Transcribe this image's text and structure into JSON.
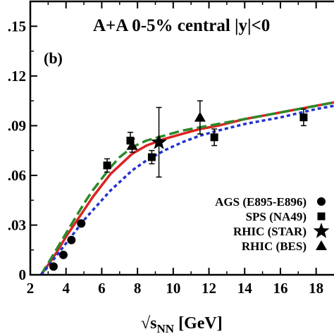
{
  "chart_data": {
    "type": "scatter",
    "title": "A+A 0-5% central  |y|<0",
    "panel_label": "(b)",
    "xlabel_prefix": "√s",
    "xlabel_sub": "NN",
    "xlabel_suffix": " [GeV]",
    "xlim": [
      2,
      19
    ],
    "ylim": [
      0,
      0.165
    ],
    "x_ticks": [
      2,
      4,
      6,
      8,
      10,
      12,
      14,
      16,
      18
    ],
    "x_tick_labels": [
      "2",
      "4",
      "6",
      "8",
      "10",
      "12",
      "14",
      "16",
      "18"
    ],
    "y_ticks": [
      0,
      0.03,
      0.06,
      0.09,
      0.12,
      0.15
    ],
    "y_tick_labels": [
      "0",
      ".03",
      ".06",
      ".09",
      ".12",
      ".15"
    ],
    "grid": false,
    "legend_position": "bottom-right",
    "series": [
      {
        "name": "AGS (E895-E896)",
        "marker": "circle",
        "points": [
          {
            "x": 3.3,
            "y": 0.005
          },
          {
            "x": 3.85,
            "y": 0.012
          },
          {
            "x": 4.3,
            "y": 0.021
          },
          {
            "x": 4.85,
            "y": 0.031
          }
        ]
      },
      {
        "name": "SPS (NA49)",
        "marker": "square",
        "points": [
          {
            "x": 6.3,
            "y": 0.066,
            "err": 0.004
          },
          {
            "x": 7.6,
            "y": 0.081,
            "err": 0.005
          },
          {
            "x": 8.8,
            "y": 0.071,
            "err": 0.004
          },
          {
            "x": 12.3,
            "y": 0.083,
            "err": 0.005
          },
          {
            "x": 17.3,
            "y": 0.095,
            "err": 0.005
          }
        ]
      },
      {
        "name": "RHIC (STAR)",
        "marker": "star",
        "points": [
          {
            "x": 9.2,
            "y": 0.08,
            "err": 0.021
          }
        ]
      },
      {
        "name": "RHIC (BES)",
        "marker": "triangle",
        "points": [
          {
            "x": 7.7,
            "y": 0.078,
            "err": 0.004
          },
          {
            "x": 11.5,
            "y": 0.095,
            "err": 0.01
          }
        ]
      }
    ],
    "curves": [
      {
        "color": "#dd2222",
        "style": "solid",
        "x": [
          2.6,
          3.0,
          3.5,
          4.0,
          4.5,
          5.0,
          5.5,
          6.0,
          6.5,
          7.0,
          7.7,
          8.5,
          9.5,
          10.5,
          11.5,
          12.5,
          14,
          16,
          18,
          19
        ],
        "y": [
          0,
          0.006,
          0.014,
          0.023,
          0.031,
          0.039,
          0.047,
          0.054,
          0.061,
          0.066,
          0.073,
          0.078,
          0.082,
          0.085,
          0.088,
          0.09,
          0.094,
          0.098,
          0.102,
          0.104
        ]
      },
      {
        "color": "#2a8a2a",
        "style": "dashed",
        "x": [
          2.6,
          3.0,
          3.5,
          4.0,
          4.5,
          5.0,
          5.5,
          6.0,
          6.5,
          7.0,
          7.7,
          8.5,
          9.5,
          10.5,
          11.5,
          12.5,
          14,
          16,
          18,
          19
        ],
        "y": [
          0,
          0.007,
          0.016,
          0.025,
          0.034,
          0.043,
          0.051,
          0.058,
          0.065,
          0.071,
          0.077,
          0.081,
          0.084,
          0.087,
          0.089,
          0.091,
          0.094,
          0.098,
          0.102,
          0.104
        ]
      },
      {
        "color": "#2233cc",
        "style": "dotted",
        "x": [
          2.6,
          3.0,
          3.5,
          4.0,
          4.5,
          5.0,
          5.5,
          6.0,
          6.5,
          7.0,
          7.7,
          8.5,
          9.5,
          10.5,
          11.5,
          12.5,
          14,
          16,
          18,
          19
        ],
        "y": [
          0,
          0.005,
          0.012,
          0.019,
          0.026,
          0.033,
          0.039,
          0.045,
          0.051,
          0.056,
          0.063,
          0.069,
          0.075,
          0.08,
          0.084,
          0.087,
          0.091,
          0.095,
          0.1,
          0.102
        ]
      }
    ]
  }
}
